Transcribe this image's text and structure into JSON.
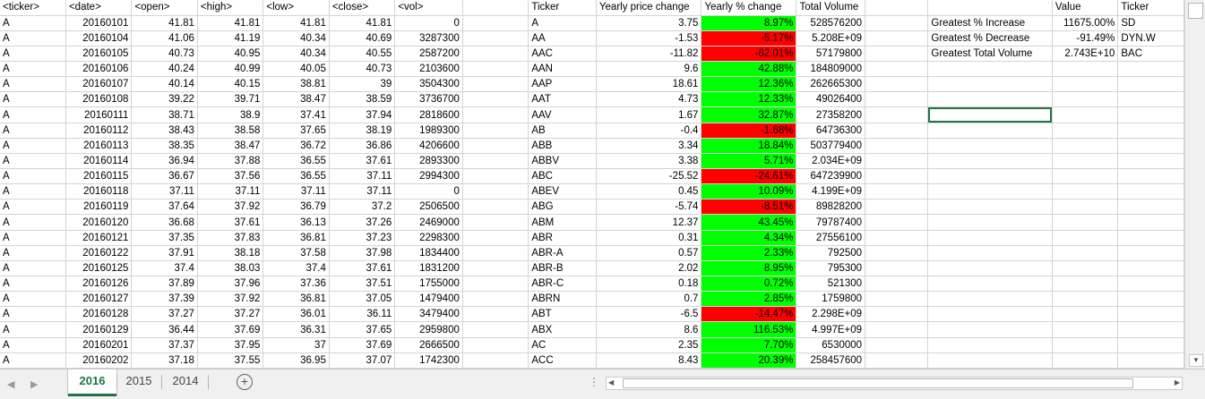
{
  "raw_headers": [
    "<ticker>",
    "<date>",
    "<open>",
    "<high>",
    "<low>",
    "<close>",
    "<vol>"
  ],
  "raw_rows": [
    [
      "A",
      "20160101",
      "41.81",
      "41.81",
      "41.81",
      "41.81",
      "0"
    ],
    [
      "A",
      "20160104",
      "41.06",
      "41.19",
      "40.34",
      "40.69",
      "3287300"
    ],
    [
      "A",
      "20160105",
      "40.73",
      "40.95",
      "40.34",
      "40.55",
      "2587200"
    ],
    [
      "A",
      "20160106",
      "40.24",
      "40.99",
      "40.05",
      "40.73",
      "2103600"
    ],
    [
      "A",
      "20160107",
      "40.14",
      "40.15",
      "38.81",
      "39",
      "3504300"
    ],
    [
      "A",
      "20160108",
      "39.22",
      "39.71",
      "38.47",
      "38.59",
      "3736700"
    ],
    [
      "A",
      "20160111",
      "38.71",
      "38.9",
      "37.41",
      "37.94",
      "2818600"
    ],
    [
      "A",
      "20160112",
      "38.43",
      "38.58",
      "37.65",
      "38.19",
      "1989300"
    ],
    [
      "A",
      "20160113",
      "38.35",
      "38.47",
      "36.72",
      "36.86",
      "4206600"
    ],
    [
      "A",
      "20160114",
      "36.94",
      "37.88",
      "36.55",
      "37.61",
      "2893300"
    ],
    [
      "A",
      "20160115",
      "36.67",
      "37.56",
      "36.55",
      "37.11",
      "2994300"
    ],
    [
      "A",
      "20160118",
      "37.11",
      "37.11",
      "37.11",
      "37.11",
      "0"
    ],
    [
      "A",
      "20160119",
      "37.64",
      "37.92",
      "36.79",
      "37.2",
      "2506500"
    ],
    [
      "A",
      "20160120",
      "36.68",
      "37.61",
      "36.13",
      "37.26",
      "2469000"
    ],
    [
      "A",
      "20160121",
      "37.35",
      "37.83",
      "36.81",
      "37.23",
      "2298300"
    ],
    [
      "A",
      "20160122",
      "37.91",
      "38.18",
      "37.58",
      "37.98",
      "1834400"
    ],
    [
      "A",
      "20160125",
      "37.4",
      "38.03",
      "37.4",
      "37.61",
      "1831200"
    ],
    [
      "A",
      "20160126",
      "37.89",
      "37.96",
      "37.36",
      "37.51",
      "1755000"
    ],
    [
      "A",
      "20160127",
      "37.39",
      "37.92",
      "36.81",
      "37.05",
      "1479400"
    ],
    [
      "A",
      "20160128",
      "37.27",
      "37.27",
      "36.01",
      "36.11",
      "3479400"
    ],
    [
      "A",
      "20160129",
      "36.44",
      "37.69",
      "36.31",
      "37.65",
      "2959800"
    ],
    [
      "A",
      "20160201",
      "37.37",
      "37.95",
      "37",
      "37.69",
      "2666500"
    ],
    [
      "A",
      "20160202",
      "37.18",
      "37.55",
      "36.95",
      "37.07",
      "1742300"
    ]
  ],
  "summary_headers": [
    "Ticker",
    "Yearly price change",
    "Yearly % change",
    "Total Volume"
  ],
  "summary_rows": [
    [
      "A",
      "3.75",
      "8.97%",
      "528576200",
      "green"
    ],
    [
      "AA",
      "-1.53",
      "-5.17%",
      "5.208E+09",
      "red"
    ],
    [
      "AAC",
      "-11.82",
      "-62.01%",
      "57179800",
      "red"
    ],
    [
      "AAN",
      "9.6",
      "42.88%",
      "184809000",
      "green"
    ],
    [
      "AAP",
      "18.61",
      "12.36%",
      "262665300",
      "green"
    ],
    [
      "AAT",
      "4.73",
      "12.33%",
      "49026400",
      "green"
    ],
    [
      "AAV",
      "1.67",
      "32.87%",
      "27358200",
      "green"
    ],
    [
      "AB",
      "-0.4",
      "-1.68%",
      "64736300",
      "red"
    ],
    [
      "ABB",
      "3.34",
      "18.84%",
      "503779400",
      "green"
    ],
    [
      "ABBV",
      "3.38",
      "5.71%",
      "2.034E+09",
      "green"
    ],
    [
      "ABC",
      "-25.52",
      "-24.61%",
      "647239900",
      "red"
    ],
    [
      "ABEV",
      "0.45",
      "10.09%",
      "4.199E+09",
      "green"
    ],
    [
      "ABG",
      "-5.74",
      "-8.51%",
      "89828200",
      "red"
    ],
    [
      "ABM",
      "12.37",
      "43.45%",
      "79787400",
      "green"
    ],
    [
      "ABR",
      "0.31",
      "4.34%",
      "27556100",
      "green"
    ],
    [
      "ABR-A",
      "0.57",
      "2.33%",
      "792500",
      "green"
    ],
    [
      "ABR-B",
      "2.02",
      "8.95%",
      "795300",
      "green"
    ],
    [
      "ABR-C",
      "0.18",
      "0.72%",
      "521300",
      "green"
    ],
    [
      "ABRN",
      "0.7",
      "2.85%",
      "1759800",
      "green"
    ],
    [
      "ABT",
      "-6.5",
      "-14.47%",
      "2.298E+09",
      "red"
    ],
    [
      "ABX",
      "8.6",
      "116.53%",
      "4.997E+09",
      "green"
    ],
    [
      "AC",
      "2.35",
      "7.70%",
      "6530000",
      "green"
    ],
    [
      "ACC",
      "8.43",
      "20.39%",
      "258457600",
      "green"
    ]
  ],
  "greatest_headers": [
    "",
    "Value",
    "Ticker"
  ],
  "greatest_rows": [
    [
      "Greatest % Increase",
      "11675.00%",
      "SD"
    ],
    [
      "Greatest % Decrease",
      "-91.49%",
      "DYN.W"
    ],
    [
      "Greatest Total Volume",
      "2.743E+10",
      "BAC"
    ]
  ],
  "sheet_tabs": [
    {
      "label": "2016",
      "active": true
    },
    {
      "label": "2015",
      "active": false
    },
    {
      "label": "2014",
      "active": false
    }
  ],
  "colors": {
    "positive": "#00ff00",
    "negative": "#ff0000",
    "accent": "#217346"
  },
  "icons": {
    "add_sheet": "plus-circle-icon",
    "prev_sheet": "left-arrow-icon",
    "next_sheet": "right-arrow-icon"
  }
}
